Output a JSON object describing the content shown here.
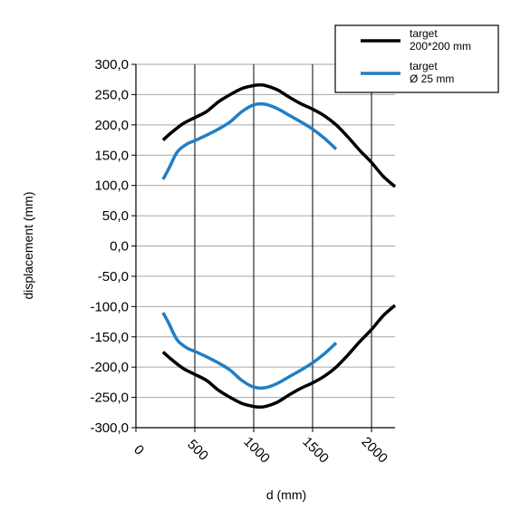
{
  "chart_data": {
    "type": "line",
    "title": "",
    "xlabel": "d (mm)",
    "ylabel": "displacement (mm)",
    "xlim": [
      0,
      2200
    ],
    "ylim": [
      -300,
      300
    ],
    "x_ticks": [
      "0",
      "500",
      "1000",
      "1500",
      "2000"
    ],
    "y_ticks": [
      "300,0",
      "250,0",
      "200,0",
      "150,0",
      "100,0",
      "50,0",
      "0,0",
      "-50,0",
      "-100,0",
      "-150,0",
      "-200,0",
      "-250,0",
      "-300,0"
    ],
    "grid": true,
    "legend_position": "top-right",
    "series": [
      {
        "name": "target 200*200 mm",
        "legend_lines": [
          "target",
          "200*200 mm"
        ],
        "color": "#000000",
        "x": [
          230,
          300,
          400,
          500,
          600,
          700,
          800,
          900,
          1000,
          1050,
          1100,
          1200,
          1300,
          1400,
          1500,
          1600,
          1700,
          1800,
          1900,
          2000,
          2100,
          2200
        ],
        "y_upper": [
          175,
          187,
          202,
          212,
          222,
          238,
          250,
          260,
          265,
          266,
          265,
          258,
          246,
          235,
          226,
          215,
          200,
          180,
          158,
          138,
          115,
          98
        ],
        "y_lower": [
          -175,
          -187,
          -202,
          -212,
          -222,
          -238,
          -250,
          -260,
          -265,
          -266,
          -265,
          -258,
          -246,
          -235,
          -226,
          -215,
          -200,
          -180,
          -158,
          -138,
          -115,
          -98
        ]
      },
      {
        "name": "target Ø 25 mm",
        "legend_lines": [
          "target",
          "Ø 25 mm"
        ],
        "color": "#1f7fc3",
        "x": [
          230,
          280,
          350,
          430,
          500,
          600,
          700,
          800,
          900,
          1000,
          1100,
          1200,
          1300,
          1400,
          1500,
          1600,
          1700
        ],
        "y_upper": [
          110,
          128,
          155,
          168,
          174,
          183,
          193,
          205,
          222,
          233,
          234,
          227,
          216,
          205,
          193,
          178,
          160
        ],
        "y_lower": [
          -110,
          -128,
          -155,
          -168,
          -174,
          -183,
          -193,
          -205,
          -222,
          -233,
          -234,
          -227,
          -216,
          -205,
          -193,
          -178,
          -160
        ]
      }
    ]
  }
}
